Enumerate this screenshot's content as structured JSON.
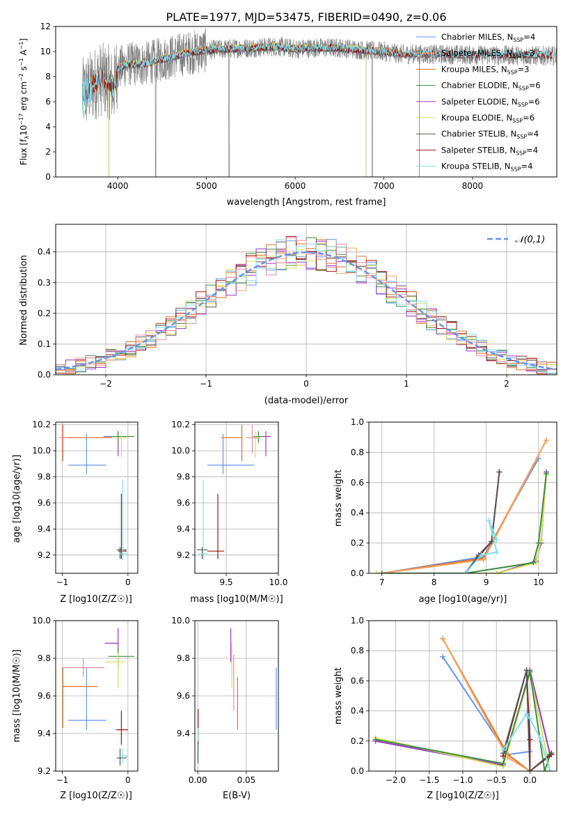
{
  "colors": {
    "chabrier_miles": "#6495ED",
    "salpeter_miles": "#F4A460",
    "kroupa_miles": "#E07020",
    "chabrier_elodie": "#3C8C3C",
    "salpeter_elodie": "#9932CC",
    "kroupa_elodie": "#D4E157",
    "chabrier_stelib": "#555555",
    "salpeter_stelib": "#A01010",
    "kroupa_stelib": "#80DEEA",
    "data": "#808080",
    "pink": "#E88AA0"
  },
  "legend_spectrum": [
    "Chabrier MILES, N_SSP=4",
    "Salpeter MILES, N_SSP=3",
    "Kroupa MILES, N_SSP=3",
    "Chabrier ELODIE, N_SSP=6",
    "Salpeter ELODIE, N_SSP=6",
    "Kroupa ELODIE, N_SSP=6",
    "Chabrier STELIB, N_SSP=4",
    "Salpeter STELIB, N_SSP=4",
    "Kroupa STELIB, N_SSP=4"
  ],
  "chart_data": [
    {
      "id": "spectrum",
      "type": "line",
      "title": "PLATE=1977, MJD=53475, FIBERID=0490, z=0.06",
      "xlabel": "wavelength [Angstrom, rest frame]",
      "ylabel": "Flux [f_λ 10^-17 erg cm^-2 s^-1 A^-1]",
      "xlim": [
        3300,
        8950
      ],
      "ylim": [
        0,
        12
      ],
      "xticks": [
        4000,
        5000,
        6000,
        7000,
        8000
      ],
      "yticks": [
        0,
        2,
        4,
        6,
        8,
        10,
        12
      ],
      "legend_position": "right",
      "continuum": {
        "x": [
          3600,
          3700,
          3800,
          3900,
          3950,
          4000,
          4100,
          4300,
          4500,
          4800,
          5000,
          5200,
          5500,
          5800,
          6000,
          6200,
          6500,
          6800,
          7000,
          7200,
          7400
        ],
        "y": [
          6.5,
          7.2,
          7.8,
          7.6,
          7.0,
          8.6,
          9.0,
          9.0,
          9.4,
          9.9,
          10.1,
          10.2,
          10.3,
          10.4,
          10.2,
          10.3,
          10.3,
          10.1,
          10.0,
          9.8,
          9.8
        ]
      },
      "data_range": [
        3600,
        8950
      ]
    },
    {
      "id": "residuals",
      "type": "step",
      "xlabel": "(data-model)/error",
      "ylabel": "Normed distribution",
      "xlim": [
        -2.5,
        2.5
      ],
      "ylim": [
        0,
        0.49
      ],
      "xticks": [
        -2,
        -1,
        0,
        1,
        2
      ],
      "yticks": [
        0.0,
        0.1,
        0.2,
        0.3,
        0.4
      ],
      "legend": [
        "𝒩(0,1)"
      ],
      "legend_position": "top-right",
      "bin_width": 0.1
    },
    {
      "id": "age-vs-z",
      "type": "errorbar",
      "xlabel": "Z [log10(Z/Z☉)]",
      "ylabel": "age [log10(age/yr)]",
      "xlim": [
        -1.1,
        0.15
      ],
      "ylim": [
        9.06,
        10.22
      ],
      "xticks": [
        -1,
        0
      ],
      "yticks": [
        9.2,
        9.4,
        9.6,
        9.8,
        10.0,
        10.2
      ],
      "points": [
        {
          "x": -0.63,
          "y": 9.89,
          "xerr": [
            0.28,
            0.3
          ],
          "yerr": [
            0.07,
            0.24
          ],
          "color": "chabrier_miles"
        },
        {
          "x": -0.99,
          "y": 10.1,
          "xerr": [
            0.0,
            0.75
          ],
          "yerr": [
            0.18,
            0.1
          ],
          "color": "kroupa_miles"
        },
        {
          "x": -0.15,
          "y": 10.11,
          "xerr": [
            0.22,
            0.1
          ],
          "yerr": [
            0.15,
            0.04
          ],
          "color": "salpeter_elodie"
        },
        {
          "x": -0.15,
          "y": 10.11,
          "xerr": [
            0.15,
            0.25
          ],
          "yerr": [
            0.05,
            0.04
          ],
          "color": "chabrier_elodie"
        },
        {
          "x": -0.1,
          "y": 9.23,
          "xerr": [
            0.05,
            0.08
          ],
          "yerr": [
            0.06,
            0.44
          ],
          "color": "salpeter_stelib"
        },
        {
          "x": -0.12,
          "y": 9.24,
          "xerr": [
            0.05,
            0.1
          ],
          "yerr": [
            0.07,
            0.02
          ],
          "color": "chabrier_stelib"
        },
        {
          "x": -0.08,
          "y": 9.21,
          "xerr": [
            0.05,
            0.08
          ],
          "yerr": [
            0.05,
            0.57
          ],
          "color": "kroupa_stelib"
        },
        {
          "x": -0.1,
          "y": 10.1,
          "xerr": [
            0.1,
            0.08
          ],
          "yerr": [
            0.15,
            0.05
          ],
          "color": "kroupa_elodie"
        },
        {
          "x": -1.0,
          "y": 10.1,
          "xerr": [
            0.05,
            0.05
          ],
          "yerr": [
            0.12,
            0.1
          ],
          "color": "pink"
        }
      ]
    },
    {
      "id": "age-vs-mass",
      "type": "errorbar",
      "xlabel": "mass [log10(M/M☉)]",
      "ylabel": "",
      "xlim": [
        9.2,
        10.0
      ],
      "ylim": [
        9.06,
        10.22
      ],
      "xticks": [
        9.5,
        10.0
      ],
      "yticks": [
        9.2,
        9.4,
        9.6,
        9.8,
        10.0,
        10.2
      ],
      "points": [
        {
          "x": 9.47,
          "y": 9.89,
          "xerr": [
            0.15,
            0.3
          ],
          "yerr": [
            0.07,
            0.24
          ],
          "color": "chabrier_miles"
        },
        {
          "x": 9.65,
          "y": 10.1,
          "xerr": [
            0.2,
            0.0
          ],
          "yerr": [
            0.18,
            0.1
          ],
          "color": "kroupa_miles"
        },
        {
          "x": 9.88,
          "y": 10.11,
          "xerr": [
            0.05,
            0.05
          ],
          "yerr": [
            0.15,
            0.04
          ],
          "color": "salpeter_elodie"
        },
        {
          "x": 9.81,
          "y": 10.11,
          "xerr": [
            0.05,
            0.05
          ],
          "yerr": [
            0.05,
            0.04
          ],
          "color": "chabrier_elodie"
        },
        {
          "x": 9.42,
          "y": 9.23,
          "xerr": [
            0.1,
            0.06
          ],
          "yerr": [
            0.06,
            0.44
          ],
          "color": "salpeter_stelib"
        },
        {
          "x": 9.27,
          "y": 9.24,
          "xerr": [
            0.05,
            0.05
          ],
          "yerr": [
            0.07,
            0.02
          ],
          "color": "chabrier_stelib"
        },
        {
          "x": 9.28,
          "y": 9.21,
          "xerr": [
            0.05,
            0.05
          ],
          "yerr": [
            0.05,
            0.57
          ],
          "color": "kroupa_stelib"
        },
        {
          "x": 9.78,
          "y": 10.1,
          "xerr": [
            0.05,
            0.05
          ],
          "yerr": [
            0.15,
            0.05
          ],
          "color": "kroupa_elodie"
        },
        {
          "x": 9.75,
          "y": 10.1,
          "xerr": [
            0.05,
            0.05
          ],
          "yerr": [
            0.12,
            0.1
          ],
          "color": "pink"
        }
      ]
    },
    {
      "id": "weight-vs-age",
      "type": "line",
      "xlabel": "age [log10(age/yr)]",
      "ylabel": "mass weight",
      "xlim": [
        6.75,
        10.35
      ],
      "ylim": [
        0,
        1
      ],
      "xticks": [
        7,
        8,
        9,
        10
      ],
      "yticks": [
        0.0,
        0.2,
        0.4,
        0.6,
        0.8,
        1.0
      ],
      "series": [
        {
          "color": "chabrier_miles",
          "x": [
            7.0,
            8.95,
            10.0
          ],
          "y": [
            0.0,
            0.11,
            0.76
          ]
        },
        {
          "color": "kroupa_miles",
          "x": [
            7.0,
            8.95,
            10.15
          ],
          "y": [
            0.0,
            0.1,
            0.88
          ]
        },
        {
          "color": "salpeter_miles",
          "x": [
            7.0,
            8.95,
            10.15
          ],
          "y": [
            0.0,
            0.09,
            0.88
          ]
        },
        {
          "color": "salpeter_elodie",
          "x": [
            7.0,
            8.6,
            9.2,
            9.95,
            10.05,
            10.15
          ],
          "y": [
            0.0,
            0.0,
            0.0,
            0.08,
            0.2,
            0.67
          ]
        },
        {
          "color": "kroupa_elodie",
          "x": [
            6.9,
            8.6,
            9.2,
            9.95,
            10.05,
            10.15
          ],
          "y": [
            0.0,
            0.0,
            0.0,
            0.07,
            0.22,
            0.65
          ]
        },
        {
          "color": "chabrier_elodie",
          "x": [
            7.0,
            8.6,
            9.9,
            10.0,
            10.15
          ],
          "y": [
            0.0,
            0.0,
            0.07,
            0.2,
            0.66
          ]
        },
        {
          "color": "salpeter_stelib",
          "x": [
            8.6,
            8.85,
            9.1,
            9.25
          ],
          "y": [
            0.0,
            0.11,
            0.21,
            0.67
          ]
        },
        {
          "color": "chabrier_stelib",
          "x": [
            8.6,
            8.85,
            9.1,
            9.25
          ],
          "y": [
            0.0,
            0.12,
            0.21,
            0.67
          ]
        },
        {
          "color": "kroupa_stelib",
          "x": [
            8.6,
            8.9,
            9.2,
            9.05,
            9.2
          ],
          "y": [
            0.0,
            0.12,
            0.14,
            0.35,
            0.22
          ]
        }
      ]
    },
    {
      "id": "mass-vs-z",
      "type": "errorbar",
      "xlabel": "Z [log10(Z/Z☉)]",
      "ylabel": "mass [log10(M/M☉)]",
      "xlim": [
        -1.1,
        0.15
      ],
      "ylim": [
        9.2,
        10.0
      ],
      "xticks": [
        -1,
        0
      ],
      "yticks": [
        9.2,
        9.4,
        9.6,
        9.8,
        10.0
      ],
      "points": [
        {
          "x": -0.63,
          "y": 9.47,
          "xerr": [
            0.28,
            0.3
          ],
          "yerr": [
            0.05,
            0.28
          ],
          "color": "chabrier_miles"
        },
        {
          "x": -0.99,
          "y": 9.65,
          "xerr": [
            0.0,
            0.53
          ],
          "yerr": [
            0.22,
            0.1
          ],
          "color": "kroupa_miles"
        },
        {
          "x": -0.15,
          "y": 9.88,
          "xerr": [
            0.2,
            0.0
          ],
          "yerr": [
            0.05,
            0.08
          ],
          "color": "salpeter_elodie"
        },
        {
          "x": -0.15,
          "y": 9.81,
          "xerr": [
            0.15,
            0.25
          ],
          "yerr": [
            0.06,
            0.05
          ],
          "color": "chabrier_elodie"
        },
        {
          "x": -0.1,
          "y": 9.42,
          "xerr": [
            0.08,
            0.1
          ],
          "yerr": [
            0.08,
            0.1
          ],
          "color": "salpeter_stelib"
        },
        {
          "x": -0.12,
          "y": 9.27,
          "xerr": [
            0.05,
            0.1
          ],
          "yerr": [
            0.04,
            0.05
          ],
          "color": "chabrier_stelib"
        },
        {
          "x": -0.08,
          "y": 9.28,
          "xerr": [
            0.05,
            0.08
          ],
          "yerr": [
            0.04,
            0.04
          ],
          "color": "kroupa_stelib"
        },
        {
          "x": -0.15,
          "y": 9.78,
          "xerr": [
            0.2,
            0.1
          ],
          "yerr": [
            0.14,
            0.05
          ],
          "color": "kroupa_elodie"
        },
        {
          "x": -0.68,
          "y": 9.75,
          "xerr": [
            0.32,
            0.32
          ],
          "yerr": [
            0.05,
            0.05
          ],
          "color": "pink"
        }
      ]
    },
    {
      "id": "mass-vs-ebv",
      "type": "errorbar",
      "xlabel": "E(B-V)",
      "ylabel": "",
      "xlim": [
        -0.003,
        0.083
      ],
      "ylim": [
        9.2,
        10.0
      ],
      "xticks": [
        0.0,
        0.05
      ],
      "yticks": [
        9.4,
        9.6,
        9.8,
        10.0
      ],
      "points": [
        {
          "x": 0.0808,
          "y": 9.58,
          "xerr": [
            0,
            0
          ],
          "yerr": [
            0.16,
            0.17
          ],
          "color": "chabrier_miles"
        },
        {
          "x": 0.041,
          "y": 9.58,
          "xerr": [
            0,
            0
          ],
          "yerr": [
            0.16,
            0.12
          ],
          "color": "kroupa_miles"
        },
        {
          "x": 0.034,
          "y": 9.82,
          "xerr": [
            0,
            0
          ],
          "yerr": [
            0.04,
            0.14
          ],
          "color": "salpeter_elodie"
        },
        {
          "x": 0.035,
          "y": 9.76,
          "xerr": [
            0,
            0
          ],
          "yerr": [
            0.12,
            0.12
          ],
          "color": "kroupa_elodie"
        },
        {
          "x": 0.037,
          "y": 9.67,
          "xerr": [
            0,
            0
          ],
          "yerr": [
            0.15,
            0.15
          ],
          "color": "pink"
        },
        {
          "x": 0.0004,
          "y": 9.44,
          "xerr": [
            0,
            0
          ],
          "yerr": [
            0.1,
            0.09
          ],
          "color": "salpeter_stelib"
        },
        {
          "x": 0.0003,
          "y": 9.33,
          "xerr": [
            0,
            0
          ],
          "yerr": [
            0.08,
            0.1
          ],
          "color": "kroupa_stelib"
        },
        {
          "x": 0.0002,
          "y": 9.3,
          "xerr": [
            0,
            0
          ],
          "yerr": [
            0.06,
            0.06
          ],
          "color": "chabrier_stelib"
        }
      ]
    },
    {
      "id": "weight-vs-z",
      "type": "line",
      "xlabel": "Z [log10(Z/Z☉)]",
      "ylabel": "mass weight",
      "xlim": [
        -2.4,
        0.4
      ],
      "ylim": [
        0,
        1
      ],
      "xticks": [
        -2.0,
        -1.5,
        -1.0,
        -0.5,
        0.0
      ],
      "yticks": [
        0.0,
        0.2,
        0.4,
        0.6,
        0.8,
        1.0
      ],
      "series": [
        {
          "color": "chabrier_miles",
          "x": [
            -1.3,
            -0.33,
            0.0
          ],
          "y": [
            0.76,
            0.11,
            0.13
          ]
        },
        {
          "color": "kroupa_miles",
          "x": [
            -1.3,
            -0.33,
            0.0
          ],
          "y": [
            0.88,
            0.11,
            0.0
          ]
        },
        {
          "color": "salpeter_miles",
          "x": [
            -1.3,
            -0.33,
            0.0
          ],
          "y": [
            0.88,
            0.09,
            0.0
          ]
        },
        {
          "color": "salpeter_elodie",
          "x": [
            -2.3,
            -0.4,
            0.0,
            0.3
          ],
          "y": [
            0.2,
            0.04,
            0.67,
            0.11
          ]
        },
        {
          "color": "kroupa_elodie",
          "x": [
            -2.3,
            -0.4,
            0.0,
            0.3
          ],
          "y": [
            0.22,
            0.03,
            0.65,
            0.0
          ]
        },
        {
          "color": "chabrier_elodie",
          "x": [
            -2.3,
            -0.4,
            0.0,
            0.22,
            0.3
          ],
          "y": [
            0.21,
            0.05,
            0.66,
            0.0,
            0.11
          ]
        },
        {
          "color": "salpeter_stelib",
          "x": [
            -0.4,
            -0.05,
            0.0,
            0.0,
            0.32
          ],
          "y": [
            0.1,
            0.67,
            0.21,
            0.0,
            0.11
          ]
        },
        {
          "color": "chabrier_stelib",
          "x": [
            -0.4,
            -0.05,
            0.0,
            0.32
          ],
          "y": [
            0.12,
            0.67,
            0.0,
            0.12
          ]
        },
        {
          "color": "kroupa_stelib",
          "x": [
            -0.4,
            -0.05,
            0.0,
            0.15,
            0.3
          ],
          "y": [
            0.14,
            0.38,
            0.35,
            0.22,
            0.0
          ]
        }
      ]
    }
  ]
}
